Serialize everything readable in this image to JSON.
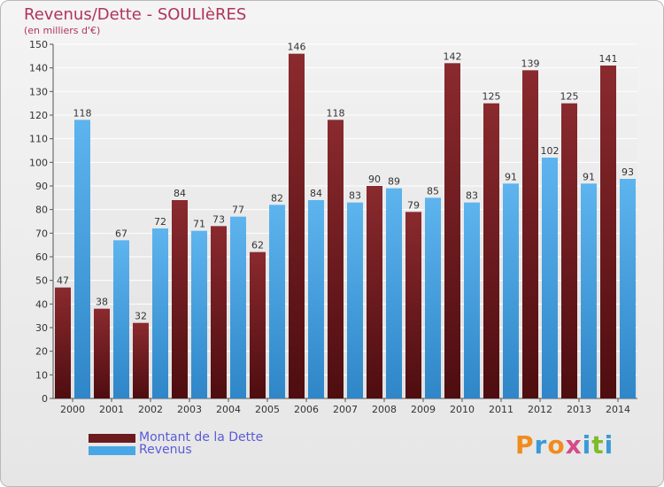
{
  "header": {
    "title": "Revenus/Dette - SOULIèRES",
    "subtitle": "(en milliers d'€)"
  },
  "colors": {
    "dette": "#6b1a1e",
    "revenus": "#4aa7e6",
    "title": "#b0345a",
    "legend_text": "#5b5bd6"
  },
  "legend": [
    {
      "label": "Montant de la Dette",
      "color": "#6b1a1e"
    },
    {
      "label": "Revenus",
      "color": "#4aa7e6"
    }
  ],
  "logo": {
    "text": "Proxiti",
    "letters": [
      {
        "ch": "P",
        "color": "#f08c1e"
      },
      {
        "ch": "r",
        "color": "#3a9ad9"
      },
      {
        "ch": "o",
        "color": "#f08c1e"
      },
      {
        "ch": "x",
        "color": "#d64a8a"
      },
      {
        "ch": "i",
        "color": "#3a9ad9"
      },
      {
        "ch": "t",
        "color": "#7dbb2a"
      },
      {
        "ch": "i",
        "color": "#3a9ad9"
      }
    ]
  },
  "chart_data": {
    "type": "bar",
    "title": "Revenus/Dette - SOULIèRES",
    "subtitle": "(en milliers d'€)",
    "categories": [
      "2000",
      "2001",
      "2002",
      "2003",
      "2004",
      "2005",
      "2006",
      "2007",
      "2008",
      "2009",
      "2010",
      "2011",
      "2012",
      "2013",
      "2014"
    ],
    "series": [
      {
        "name": "Montant de la Dette",
        "values": [
          47,
          38,
          32,
          84,
          73,
          62,
          146,
          118,
          90,
          79,
          142,
          125,
          139,
          125,
          141
        ]
      },
      {
        "name": "Revenus",
        "values": [
          118,
          67,
          72,
          71,
          77,
          82,
          84,
          83,
          89,
          85,
          83,
          91,
          102,
          91,
          93
        ]
      }
    ],
    "ylim": [
      0,
      150
    ],
    "yticks": [
      0,
      10,
      20,
      30,
      40,
      50,
      60,
      70,
      80,
      90,
      100,
      110,
      120,
      130,
      140,
      150
    ],
    "grid": true,
    "legend_position": "bottom-left"
  }
}
